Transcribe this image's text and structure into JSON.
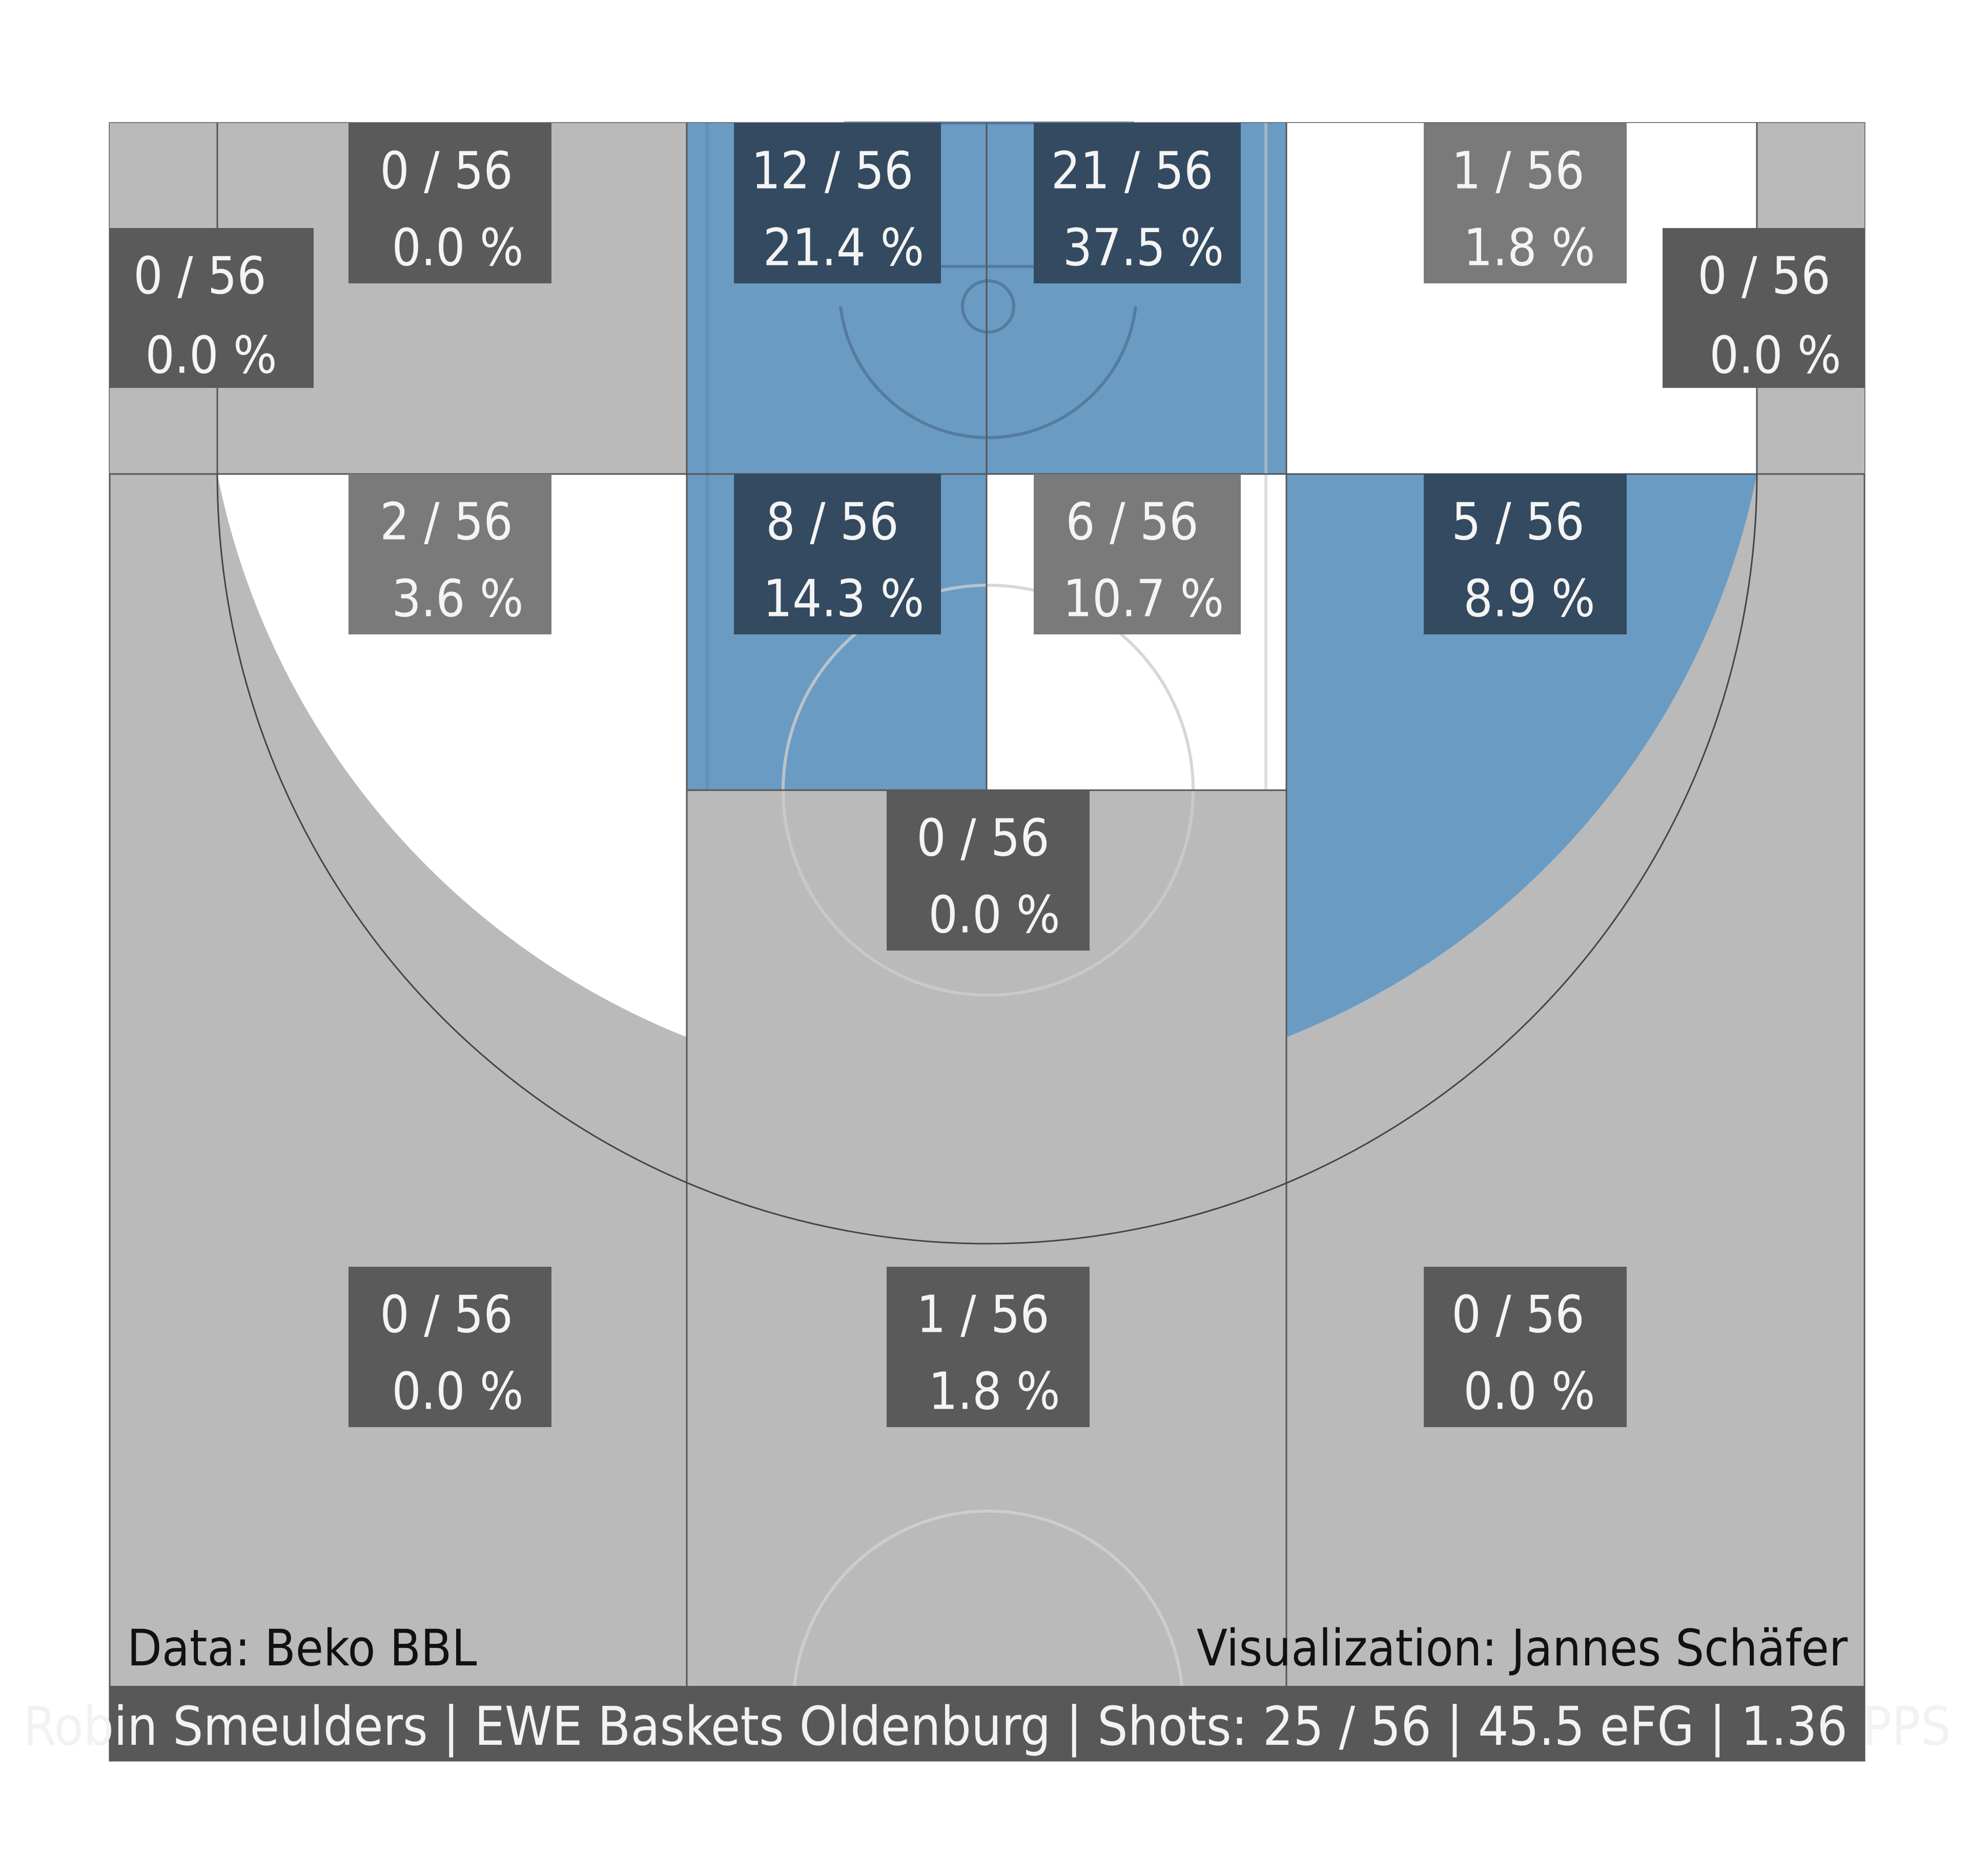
{
  "chart_data": {
    "type": "heatmap",
    "subtype": "basketball-shot-chart",
    "footer_text": "Robin Smeulders | EWE Baskets Oldenburg | Shots: 25 / 56 | 45.5 eFG | 1.36 PPS",
    "credit_left": "Data: Beko BBL",
    "credit_right": "Visualization: Jannes Schäfer",
    "player": "Robin Smeulders",
    "team": "EWE Baskets Oldenburg",
    "total_shots": 56,
    "made_shots": 25,
    "efg": 45.5,
    "pps": 1.36,
    "colors": {
      "above_average": "#6a9bc3",
      "average": "#ffffff",
      "no_data": "#bababa",
      "label_box_dark": "#5a5a5a",
      "label_box_mid": "#7a7a7a",
      "label_box_blue": "#334a60",
      "footer_bar": "#585858"
    },
    "zones": [
      {
        "id": "left-corner-three",
        "shots": 0,
        "total": 56,
        "text": "0 / 56\n0.0 %",
        "fill": "no_data",
        "box": "dark"
      },
      {
        "id": "left-baseline-two",
        "shots": 0,
        "total": 56,
        "text": "0 / 56\n0.0 %",
        "fill": "no_data",
        "box": "dark"
      },
      {
        "id": "paint-left",
        "shots": 12,
        "total": 56,
        "text": "12 / 56\n21.4 %",
        "fill": "above_average",
        "box": "blue"
      },
      {
        "id": "paint-right",
        "shots": 21,
        "total": 56,
        "text": "21 / 56\n37.5 %",
        "fill": "above_average",
        "box": "blue"
      },
      {
        "id": "right-baseline-two",
        "shots": 1,
        "total": 56,
        "text": "1 / 56\n1.8 %",
        "fill": "average",
        "box": "mid"
      },
      {
        "id": "right-corner-three",
        "shots": 0,
        "total": 56,
        "text": "0 / 56\n0.0 %",
        "fill": "no_data",
        "box": "dark"
      },
      {
        "id": "left-wing-two",
        "shots": 2,
        "total": 56,
        "text": "2 / 56\n3.6 %",
        "fill": "average",
        "box": "mid"
      },
      {
        "id": "paint-top-left",
        "shots": 8,
        "total": 56,
        "text": "8 / 56\n14.3 %",
        "fill": "above_average",
        "box": "blue"
      },
      {
        "id": "paint-top-right",
        "shots": 6,
        "total": 56,
        "text": "6 / 56\n10.7 %",
        "fill": "average",
        "box": "mid"
      },
      {
        "id": "right-wing-two",
        "shots": 5,
        "total": 56,
        "text": "5 / 56\n8.9 %",
        "fill": "above_average",
        "box": "blue"
      },
      {
        "id": "top-key-two",
        "shots": 0,
        "total": 56,
        "text": "0 / 56\n0.0 %",
        "fill": "no_data",
        "box": "dark"
      },
      {
        "id": "left-three",
        "shots": 0,
        "total": 56,
        "text": "0 / 56\n0.0 %",
        "fill": "no_data",
        "box": "dark"
      },
      {
        "id": "center-three",
        "shots": 1,
        "total": 56,
        "text": "1 / 56\n1.8 %",
        "fill": "no_data",
        "box": "dark"
      },
      {
        "id": "right-three",
        "shots": 0,
        "total": 56,
        "text": "0 / 56\n0.0 %",
        "fill": "no_data",
        "box": "dark"
      }
    ]
  }
}
